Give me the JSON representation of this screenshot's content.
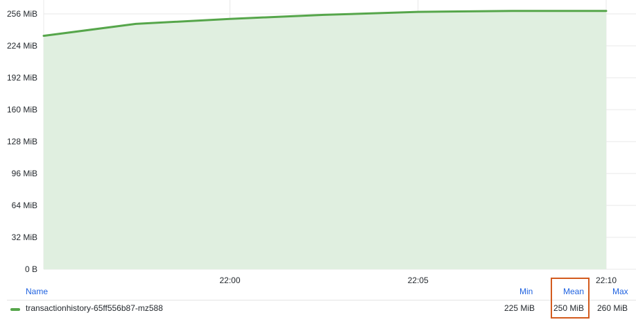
{
  "chart_data": {
    "type": "area",
    "x": [
      "21:55:03",
      "21:57:30",
      "22:00:00",
      "22:02:30",
      "22:05:00",
      "22:07:30",
      "22:10:00"
    ],
    "series": [
      {
        "name": "transactionhistory-65ff556b87-mz588",
        "values": [
          234,
          246,
          251,
          255,
          258,
          259,
          259
        ],
        "color": "#56a64b",
        "fill": "#e0efe0"
      }
    ],
    "x_ticks": [
      "22:00",
      "22:05",
      "22:10"
    ],
    "y_ticks": [
      "0 B",
      "32 MiB",
      "64 MiB",
      "96 MiB",
      "128 MiB",
      "160 MiB",
      "192 MiB",
      "224 MiB",
      "256 MiB"
    ],
    "y_tick_values": [
      0,
      32,
      64,
      96,
      128,
      160,
      192,
      224,
      256
    ],
    "ylim": [
      0,
      256
    ],
    "y_unit": "MiB",
    "grid": true
  },
  "legend": {
    "headers": {
      "name": "Name",
      "min": "Min",
      "mean": "Mean",
      "max": "Max"
    },
    "rows": [
      {
        "name": "transactionhistory-65ff556b87-mz588",
        "min": "225 MiB",
        "mean": "250 MiB",
        "max": "260 MiB",
        "color": "#56a64b"
      }
    ]
  },
  "highlight_color": "#d35b1e"
}
